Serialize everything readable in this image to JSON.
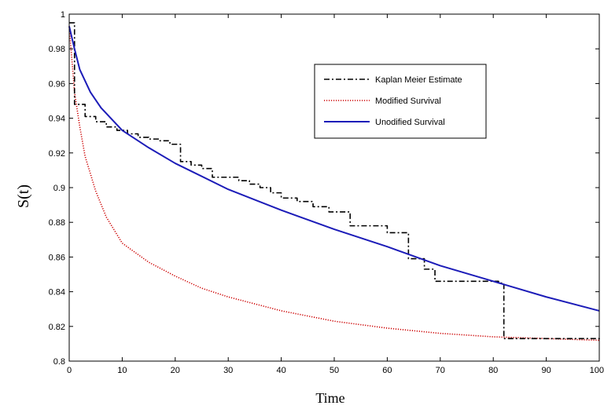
{
  "chart_data": {
    "type": "line",
    "title": "",
    "xlabel": "Time",
    "ylabel": "S(t)",
    "xlim": [
      0,
      100
    ],
    "ylim": [
      0.8,
      1
    ],
    "x_ticks": [
      "0",
      "10",
      "20",
      "30",
      "40",
      "50",
      "60",
      "70",
      "80",
      "90",
      "100"
    ],
    "y_ticks": [
      "0.8",
      "0.82",
      "0.84",
      "0.86",
      "0.88",
      "0.9",
      "0.92",
      "0.94",
      "0.96",
      "0.98",
      "1"
    ],
    "grid": false,
    "legend_position": "top-right",
    "series": [
      {
        "name": "Kaplan Meier Estimate",
        "color": "#000000",
        "style": "dash-dot",
        "step": true,
        "x": [
          0,
          1,
          3,
          5,
          7,
          9,
          11,
          13,
          15,
          17,
          19,
          21,
          23,
          25,
          27,
          30,
          32,
          34,
          36,
          38,
          40,
          43,
          46,
          49,
          53,
          57,
          60,
          64,
          67,
          69,
          74,
          81,
          82,
          100
        ],
        "y": [
          0.995,
          0.948,
          0.941,
          0.938,
          0.935,
          0.933,
          0.931,
          0.929,
          0.928,
          0.927,
          0.925,
          0.915,
          0.913,
          0.911,
          0.906,
          0.906,
          0.904,
          0.902,
          0.9,
          0.897,
          0.894,
          0.892,
          0.889,
          0.886,
          0.878,
          0.878,
          0.874,
          0.859,
          0.853,
          0.846,
          0.846,
          0.845,
          0.813,
          0.812
        ]
      },
      {
        "name": "Modified Survival",
        "color": "#cc0000",
        "style": "dotted",
        "x": [
          0,
          1,
          2,
          3,
          5,
          7,
          10,
          15,
          20,
          25,
          30,
          40,
          50,
          60,
          70,
          80,
          90,
          100
        ],
        "y": [
          0.993,
          0.955,
          0.935,
          0.918,
          0.898,
          0.883,
          0.868,
          0.857,
          0.849,
          0.842,
          0.837,
          0.829,
          0.823,
          0.819,
          0.816,
          0.814,
          0.813,
          0.812
        ]
      },
      {
        "name": "Unodified Survival",
        "color": "#1c1cb8",
        "style": "solid",
        "x": [
          0,
          1,
          2,
          4,
          6,
          10,
          15,
          20,
          30,
          40,
          50,
          60,
          70,
          80,
          90,
          100
        ],
        "y": [
          0.993,
          0.98,
          0.968,
          0.955,
          0.946,
          0.933,
          0.923,
          0.914,
          0.899,
          0.887,
          0.876,
          0.866,
          0.855,
          0.846,
          0.837,
          0.829
        ]
      }
    ]
  }
}
